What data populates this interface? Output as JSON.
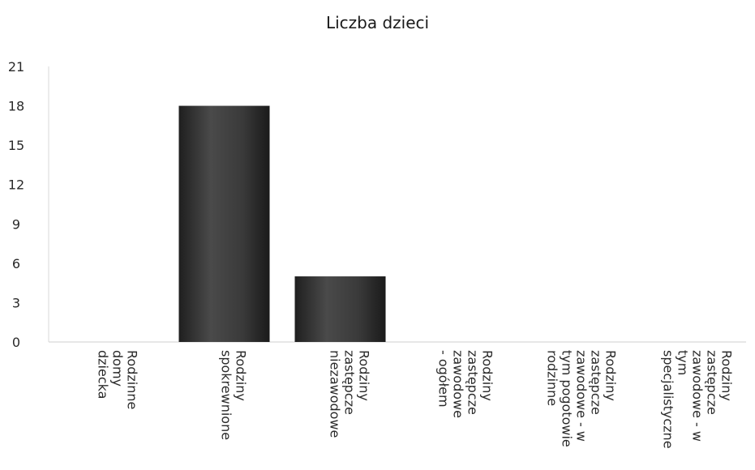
{
  "chart_data": {
    "type": "bar",
    "title": "Liczba dzieci",
    "xlabel": "",
    "ylabel": "",
    "categories": [
      "Rodzinne domy dziecka",
      "Rodziny spokrewnione",
      "Rodziny zastępcze niezawodowe",
      "Rodziny zastępcze zawodowe - ogółem",
      "Rodziny zastępcze zawodowe - w tym pogotowie rodzinne",
      "Rodziny zastępcze zawodowe - w tym specjalistyczne"
    ],
    "category_label_lines": [
      [
        "Rodzinne",
        "domy",
        "dziecka"
      ],
      [
        "Rodziny",
        "spokrewnione"
      ],
      [
        "Rodziny",
        "zastępcze",
        "niezawodowe"
      ],
      [
        "Rodziny",
        "zastępcze",
        "zawodowe",
        "- ogółem"
      ],
      [
        "Rodziny",
        "zastępcze",
        "zawodowe - w",
        "tym pogotowie",
        "rodzinne"
      ],
      [
        "Rodziny",
        "zastępcze",
        "zawodowe - w",
        "tym",
        "specjalistyczne"
      ]
    ],
    "values": [
      0,
      18,
      5,
      0,
      0,
      0
    ],
    "ylim": [
      0,
      21
    ],
    "yticks": [
      0,
      3,
      6,
      9,
      12,
      15,
      18,
      21
    ],
    "grid": false,
    "legend": "none",
    "bar_color": "#3a3a3a"
  }
}
